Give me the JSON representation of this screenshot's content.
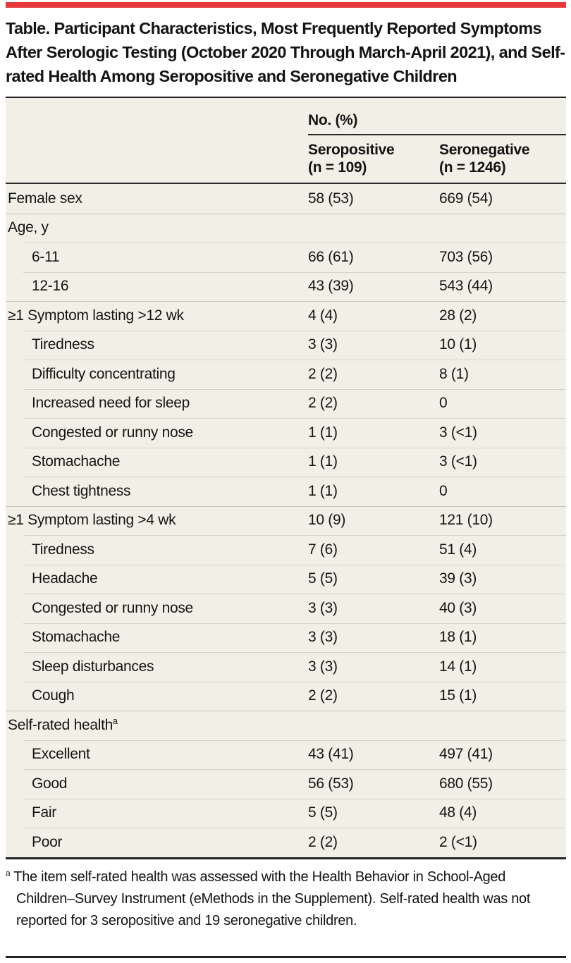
{
  "title": "Table. Participant Characteristics, Most Frequently Reported Symptoms After Serologic Testing (October 2020 Through March-April 2021), and Self-rated Health Among Seropositive and Seronegative Children",
  "table": {
    "group_header": "No. (%)",
    "columns": [
      {
        "label": "Seropositive",
        "n": "(n = 109)"
      },
      {
        "label": "Seronegative",
        "n": "(n = 1246)"
      }
    ],
    "rows": [
      {
        "label": "Female sex",
        "indent": false,
        "seropositive": "58 (53)",
        "seronegative": "669 (54)"
      },
      {
        "label": "Age, y",
        "indent": false,
        "seropositive": "",
        "seronegative": ""
      },
      {
        "label": "6-11",
        "indent": true,
        "seropositive": "66 (61)",
        "seronegative": "703 (56)"
      },
      {
        "label": "12-16",
        "indent": true,
        "seropositive": "43 (39)",
        "seronegative": "543 (44)"
      },
      {
        "label": "≥1 Symptom lasting >12 wk",
        "indent": false,
        "seropositive": "4 (4)",
        "seronegative": "28 (2)"
      },
      {
        "label": "Tiredness",
        "indent": true,
        "seropositive": "3 (3)",
        "seronegative": "10 (1)"
      },
      {
        "label": "Difficulty concentrating",
        "indent": true,
        "seropositive": "2 (2)",
        "seronegative": "8 (1)"
      },
      {
        "label": "Increased need for sleep",
        "indent": true,
        "seropositive": "2 (2)",
        "seronegative": "0"
      },
      {
        "label": "Congested or runny nose",
        "indent": true,
        "seropositive": "1 (1)",
        "seronegative": "3 (<1)"
      },
      {
        "label": "Stomachache",
        "indent": true,
        "seropositive": "1 (1)",
        "seronegative": "3 (<1)"
      },
      {
        "label": "Chest tightness",
        "indent": true,
        "seropositive": "1 (1)",
        "seronegative": "0"
      },
      {
        "label": "≥1 Symptom lasting >4 wk",
        "indent": false,
        "seropositive": "10 (9)",
        "seronegative": "121 (10)"
      },
      {
        "label": "Tiredness",
        "indent": true,
        "seropositive": "7 (6)",
        "seronegative": "51 (4)"
      },
      {
        "label": "Headache",
        "indent": true,
        "seropositive": "5 (5)",
        "seronegative": "39 (3)"
      },
      {
        "label": "Congested or runny nose",
        "indent": true,
        "seropositive": "3 (3)",
        "seronegative": "40 (3)"
      },
      {
        "label": "Stomachache",
        "indent": true,
        "seropositive": "3 (3)",
        "seronegative": "18 (1)"
      },
      {
        "label": "Sleep disturbances",
        "indent": true,
        "seropositive": "3 (3)",
        "seronegative": "14 (1)"
      },
      {
        "label": "Cough",
        "indent": true,
        "seropositive": "2 (2)",
        "seronegative": "15 (1)"
      },
      {
        "label": "Self-rated health",
        "sup": "a",
        "indent": false,
        "seropositive": "",
        "seronegative": ""
      },
      {
        "label": "Excellent",
        "indent": true,
        "seropositive": "43 (41)",
        "seronegative": "497 (41)"
      },
      {
        "label": "Good",
        "indent": true,
        "seropositive": "56 (53)",
        "seronegative": "680 (55)"
      },
      {
        "label": "Fair",
        "indent": true,
        "seropositive": "5 (5)",
        "seronegative": "48 (4)"
      },
      {
        "label": "Poor",
        "indent": true,
        "seropositive": "2 (2)",
        "seronegative": "2 (<1)"
      }
    ]
  },
  "footnote": {
    "marker": "a",
    "text": "The item self-rated health was assessed with the Health Behavior in School-Aged Children–Survey Instrument (eMethods in the Supplement). Self-rated health was not reported for 3 seropositive and 19 seronegative children."
  },
  "colors": {
    "accent_red": "#e6393c",
    "table_background": "#f2f0e6",
    "rule_dark": "#242424",
    "text": "#141414"
  }
}
